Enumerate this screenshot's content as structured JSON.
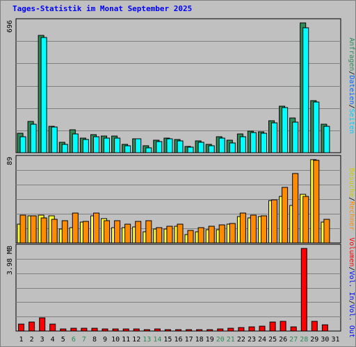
{
  "title": "Tages-Statistik im Monat September 2025",
  "colors": {
    "hits": "#2e8b57",
    "files": "#00ffff",
    "pages": "#00bfff",
    "visits": "#ffff33",
    "sites": "#ff8c00",
    "volume": "#ff0000",
    "weekday_label": "#000000",
    "weekend_label": "#2e8b57"
  },
  "chart_data": [
    {
      "type": "bar",
      "panel": "top",
      "ymax_label": "696",
      "ylim": [
        0,
        696
      ],
      "right_legend": [
        {
          "text": "Anfragen",
          "color": "#2e8b57"
        },
        {
          "text": "/",
          "color": "#000000"
        },
        {
          "text": "Dateien",
          "color": "#0066ff"
        },
        {
          "text": "/",
          "color": "#000000"
        },
        {
          "text": "Seiten",
          "color": "#00ccff"
        }
      ],
      "categories": [
        "1",
        "2",
        "3",
        "4",
        "5",
        "6",
        "7",
        "8",
        "9",
        "10",
        "11",
        "12",
        "13",
        "14",
        "15",
        "16",
        "17",
        "18",
        "19",
        "20",
        "21",
        "22",
        "23",
        "24",
        "25",
        "26",
        "27",
        "28",
        "29",
        "30",
        "31"
      ],
      "series": [
        {
          "name": "Anfragen",
          "color": "#2e8b57",
          "values": [
            105,
            166,
            630,
            140,
            56,
            122,
            80,
            96,
            88,
            88,
            44,
            76,
            38,
            68,
            79,
            69,
            33,
            63,
            44,
            86,
            68,
            100,
            116,
            110,
            172,
            248,
            186,
            696,
            281,
            153,
            0
          ]
        },
        {
          "name": "Dateien",
          "color": "#00ffff",
          "values": [
            86,
            154,
            616,
            137,
            45,
            100,
            71,
            87,
            80,
            78,
            38,
            74,
            27,
            58,
            73,
            63,
            28,
            57,
            38,
            80,
            51,
            84,
            107,
            104,
            159,
            241,
            164,
            669,
            271,
            142,
            0
          ]
        },
        {
          "name": "Seiten",
          "color": "#00bfff",
          "values": [
            0,
            0,
            0,
            0,
            0,
            0,
            0,
            0,
            0,
            0,
            0,
            0,
            0,
            0,
            0,
            0,
            0,
            0,
            0,
            0,
            0,
            0,
            0,
            0,
            0,
            0,
            0,
            0,
            0,
            0,
            0
          ]
        }
      ]
    },
    {
      "type": "bar",
      "panel": "middle",
      "ymax_label": "89",
      "ylim": [
        0,
        89
      ],
      "right_legend": [
        {
          "text": "Besuche",
          "color": "#cccc00"
        },
        {
          "text": "/",
          "color": "#000000"
        },
        {
          "text": "Rechner",
          "color": "#ff8c00"
        }
      ],
      "categories": [
        "1",
        "2",
        "3",
        "4",
        "5",
        "6",
        "7",
        "8",
        "9",
        "10",
        "11",
        "12",
        "13",
        "14",
        "15",
        "16",
        "17",
        "18",
        "19",
        "20",
        "21",
        "22",
        "23",
        "24",
        "25",
        "26",
        "27",
        "28",
        "29",
        "30",
        "31"
      ],
      "series": [
        {
          "name": "Besuche",
          "color": "#ffff33",
          "values": [
            20,
            29,
            30,
            29,
            15,
            16,
            22,
            29,
            26,
            16,
            16,
            17,
            12,
            15,
            15,
            18,
            9,
            12,
            14,
            14,
            20,
            28,
            27,
            28,
            45,
            50,
            40,
            52,
            89,
            22,
            0
          ]
        },
        {
          "name": "Rechner",
          "color": "#ff8c00",
          "values": [
            30,
            29,
            27,
            25,
            24,
            32,
            23,
            32,
            24,
            24,
            20,
            23,
            24,
            16,
            18,
            20,
            13,
            16,
            18,
            19,
            21,
            32,
            30,
            29,
            46,
            59,
            74,
            50,
            88,
            25,
            0
          ]
        }
      ]
    },
    {
      "type": "bar",
      "panel": "bottom",
      "ymax_label": "3.98 MB",
      "ylim": [
        0,
        3.98
      ],
      "right_legend": [
        {
          "text": "Volumen",
          "color": "#ff0000"
        },
        {
          "text": "/",
          "color": "#000000"
        },
        {
          "text": "Vol. In",
          "color": "#0000ff"
        },
        {
          "text": "/",
          "color": "#000000"
        },
        {
          "text": "Vol. Out",
          "color": "#0000ff"
        }
      ],
      "categories": [
        "1",
        "2",
        "3",
        "4",
        "5",
        "6",
        "7",
        "8",
        "9",
        "10",
        "11",
        "12",
        "13",
        "14",
        "15",
        "16",
        "17",
        "18",
        "19",
        "20",
        "21",
        "22",
        "23",
        "24",
        "25",
        "26",
        "27",
        "28",
        "29",
        "30",
        "31"
      ],
      "series": [
        {
          "name": "Volumen",
          "color": "#ff0000",
          "values": [
            0.35,
            0.42,
            0.63,
            0.35,
            0.11,
            0.13,
            0.13,
            0.12,
            0.1,
            0.1,
            0.09,
            0.09,
            0.08,
            0.09,
            0.08,
            0.08,
            0.07,
            0.08,
            0.08,
            0.09,
            0.15,
            0.18,
            0.2,
            0.22,
            0.42,
            0.47,
            0.21,
            3.98,
            0.48,
            0.29,
            0
          ]
        }
      ]
    }
  ],
  "days": [
    {
      "label": "1",
      "weekend": false
    },
    {
      "label": "2",
      "weekend": false
    },
    {
      "label": "3",
      "weekend": false
    },
    {
      "label": "4",
      "weekend": false
    },
    {
      "label": "5",
      "weekend": false
    },
    {
      "label": "6",
      "weekend": true
    },
    {
      "label": "7",
      "weekend": true
    },
    {
      "label": "8",
      "weekend": false
    },
    {
      "label": "9",
      "weekend": false
    },
    {
      "label": "10",
      "weekend": false
    },
    {
      "label": "11",
      "weekend": false
    },
    {
      "label": "12",
      "weekend": false
    },
    {
      "label": "13",
      "weekend": true
    },
    {
      "label": "14",
      "weekend": true
    },
    {
      "label": "15",
      "weekend": false
    },
    {
      "label": "16",
      "weekend": false
    },
    {
      "label": "17",
      "weekend": false
    },
    {
      "label": "18",
      "weekend": false
    },
    {
      "label": "19",
      "weekend": false
    },
    {
      "label": "20",
      "weekend": true
    },
    {
      "label": "21",
      "weekend": true
    },
    {
      "label": "22",
      "weekend": false
    },
    {
      "label": "23",
      "weekend": false
    },
    {
      "label": "24",
      "weekend": false
    },
    {
      "label": "25",
      "weekend": false
    },
    {
      "label": "26",
      "weekend": false
    },
    {
      "label": "27",
      "weekend": true
    },
    {
      "label": "28",
      "weekend": true
    },
    {
      "label": "29",
      "weekend": false
    },
    {
      "label": "30",
      "weekend": false
    },
    {
      "label": "31",
      "weekend": false
    }
  ]
}
